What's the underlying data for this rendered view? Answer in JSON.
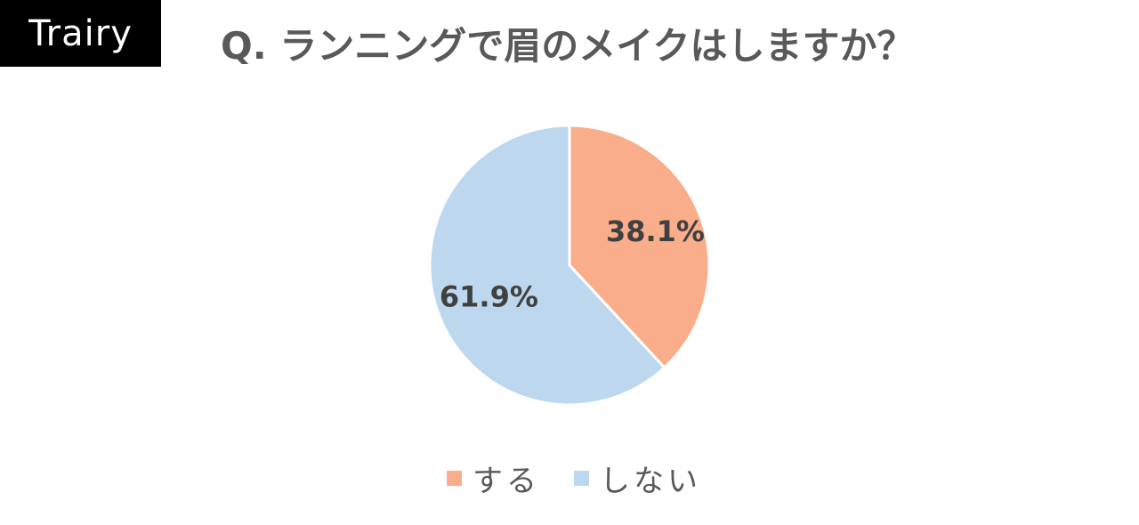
{
  "brand": {
    "name": "Trairy"
  },
  "chart_data": {
    "type": "pie",
    "title": "Q. ランニングで眉のメイクはしますか？",
    "start_angle_deg": 0,
    "direction": "clockwise",
    "legend_position": "bottom",
    "slices": [
      {
        "label": "する",
        "value": 38.1,
        "display": "38.1%",
        "color": "#F9AD8A"
      },
      {
        "label": "しない",
        "value": 61.9,
        "display": "61.9%",
        "color": "#BDD7EE"
      }
    ],
    "slice_border_color": "#FFFFFF"
  }
}
